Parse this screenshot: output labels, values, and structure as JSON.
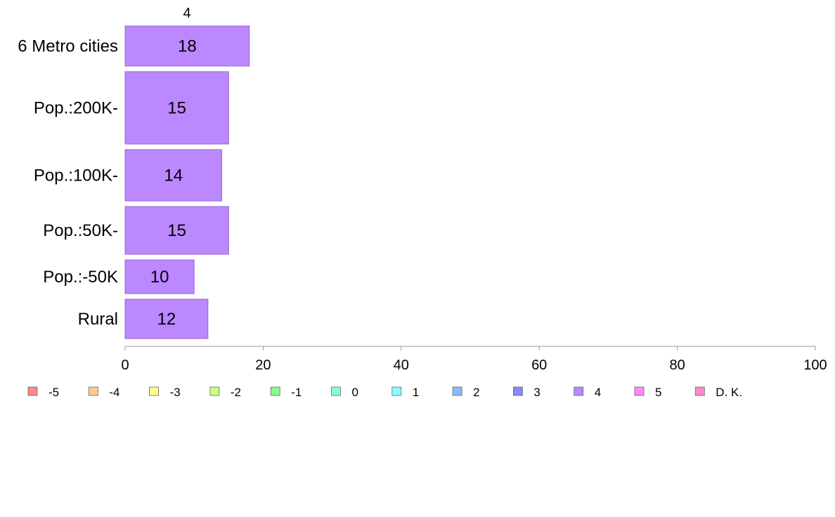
{
  "chart_data": {
    "type": "bar",
    "orientation": "horizontal",
    "stacked": true,
    "top_label": "4",
    "categories": [
      "6 Metro cities",
      "Pop.:200K-",
      "Pop.:100K-",
      "Pop.:50K-",
      "Pop.:-50K",
      "Rural"
    ],
    "series": [
      {
        "name": "4",
        "color": "#bb88ff",
        "values": [
          18,
          15,
          14,
          15,
          10,
          12
        ]
      }
    ],
    "bar_labels": [
      "18",
      "15",
      "14",
      "15",
      "10",
      "12"
    ],
    "xlim": [
      0,
      100
    ],
    "xticks": [
      0,
      20,
      40,
      60,
      80,
      100
    ],
    "xtick_labels": [
      "0",
      "20",
      "40",
      "60",
      "80",
      "100"
    ],
    "grid": false,
    "legend_position": "bottom",
    "legend": [
      {
        "label": "-5",
        "color": "#ff8888"
      },
      {
        "label": "-4",
        "color": "#ffcc88"
      },
      {
        "label": "-3",
        "color": "#ffff88"
      },
      {
        "label": "-2",
        "color": "#ccff88"
      },
      {
        "label": "-1",
        "color": "#88ff88"
      },
      {
        "label": "0",
        "color": "#88ffcc"
      },
      {
        "label": "1",
        "color": "#88ffff"
      },
      {
        "label": "2",
        "color": "#88bbff"
      },
      {
        "label": "3",
        "color": "#8888ff"
      },
      {
        "label": "4",
        "color": "#bb88ff"
      },
      {
        "label": "5",
        "color": "#ff88ff"
      },
      {
        "label": "D. K.",
        "color": "#ff88cc"
      }
    ]
  }
}
